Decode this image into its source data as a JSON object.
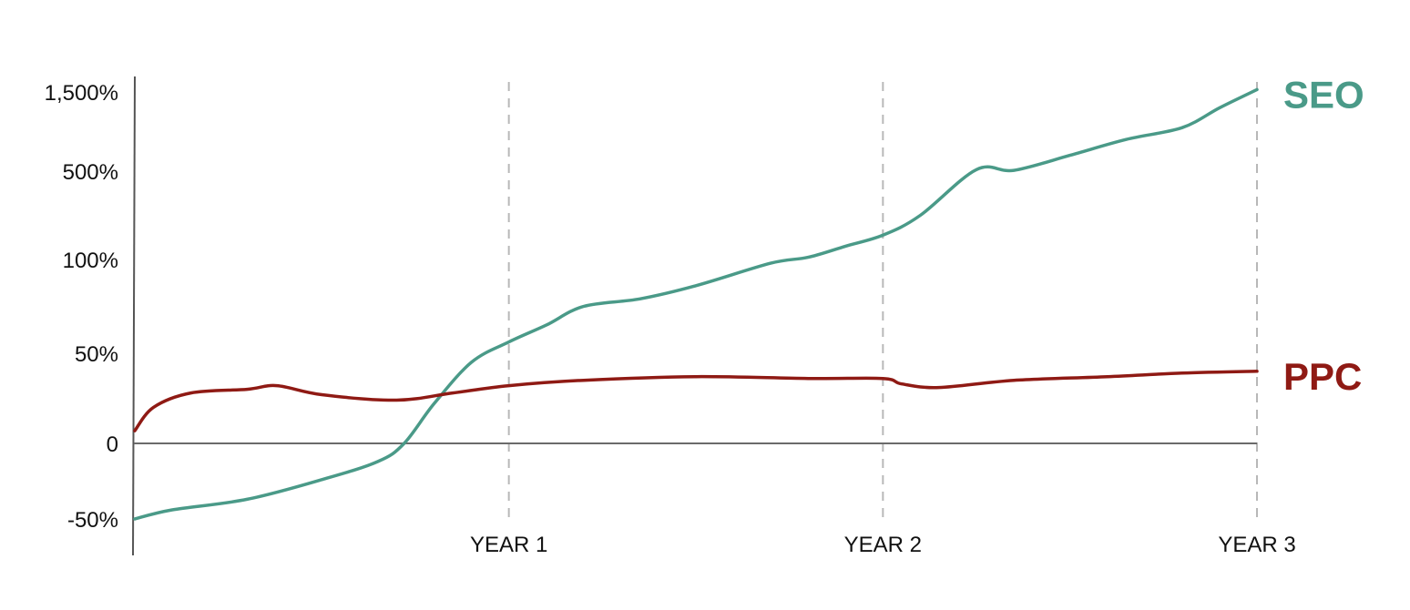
{
  "chart_data": {
    "type": "line",
    "title": "",
    "xlabel": "",
    "ylabel": "",
    "y_scale": "nonlinear (ticks evenly spaced)",
    "y_ticks": [
      {
        "value": -50,
        "label": "-50%"
      },
      {
        "value": 0,
        "label": "0"
      },
      {
        "value": 50,
        "label": "50%"
      },
      {
        "value": 100,
        "label": "100%"
      },
      {
        "value": 500,
        "label": "500%"
      },
      {
        "value": 1500,
        "label": "1,500%"
      }
    ],
    "x_ticks": [
      {
        "value": 1,
        "label": "YEAR 1"
      },
      {
        "value": 2,
        "label": "YEAR 2"
      },
      {
        "value": 3,
        "label": "YEAR 3"
      }
    ],
    "xlim": [
      0,
      3
    ],
    "grid": "vertical dashed lines at each year",
    "legend": "series names printed at right end of lines",
    "series": [
      {
        "name": "SEO",
        "color": "#4a9a88",
        "points": [
          [
            0.0,
            -50
          ],
          [
            0.1,
            -44
          ],
          [
            0.3,
            -37
          ],
          [
            0.5,
            -24
          ],
          [
            0.65,
            -12
          ],
          [
            0.72,
            0
          ],
          [
            0.8,
            22
          ],
          [
            0.9,
            45
          ],
          [
            1.0,
            56
          ],
          [
            1.1,
            65
          ],
          [
            1.2,
            75
          ],
          [
            1.35,
            79
          ],
          [
            1.5,
            86
          ],
          [
            1.7,
            98
          ],
          [
            1.8,
            110
          ],
          [
            1.9,
            160
          ],
          [
            2.0,
            210
          ],
          [
            2.1,
            300
          ],
          [
            2.25,
            520
          ],
          [
            2.35,
            510
          ],
          [
            2.5,
            700
          ],
          [
            2.65,
            900
          ],
          [
            2.8,
            1050
          ],
          [
            2.9,
            1300
          ],
          [
            3.0,
            1530
          ]
        ]
      },
      {
        "name": "PPC",
        "color": "#8f1a14",
        "points": [
          [
            0.0,
            7
          ],
          [
            0.05,
            20
          ],
          [
            0.15,
            28
          ],
          [
            0.3,
            30
          ],
          [
            0.38,
            32
          ],
          [
            0.5,
            27
          ],
          [
            0.7,
            24
          ],
          [
            0.85,
            28
          ],
          [
            1.0,
            32
          ],
          [
            1.2,
            35
          ],
          [
            1.5,
            37
          ],
          [
            1.8,
            36
          ],
          [
            2.0,
            36
          ],
          [
            2.05,
            33
          ],
          [
            2.15,
            31
          ],
          [
            2.35,
            35
          ],
          [
            2.6,
            37
          ],
          [
            2.8,
            39
          ],
          [
            3.0,
            40
          ]
        ]
      }
    ]
  }
}
